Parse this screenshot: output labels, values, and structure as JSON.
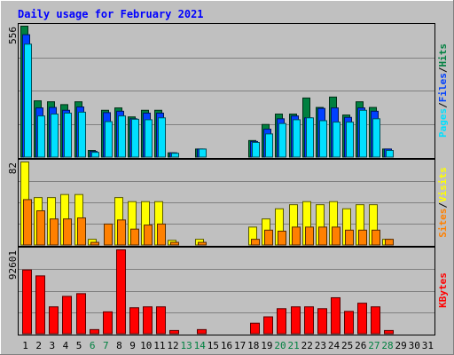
{
  "chart_data": {
    "title": "Daily usage for February 2021",
    "days": [
      "1",
      "2",
      "3",
      "4",
      "5",
      "6",
      "7",
      "8",
      "9",
      "10",
      "11",
      "12",
      "13",
      "14",
      "15",
      "16",
      "17",
      "18",
      "19",
      "20",
      "21",
      "22",
      "23",
      "24",
      "25",
      "26",
      "27",
      "28",
      "29",
      "30",
      "31"
    ],
    "weekend_days": [
      "6",
      "7",
      "13",
      "14",
      "20",
      "21",
      "27",
      "28"
    ],
    "colors": {
      "background": "#c0c0c0",
      "title": "#0000ff",
      "hits": "#008040",
      "files": "#0040ff",
      "pages": "#00e0ff",
      "visits": "#ffff00",
      "sites": "#ff8000",
      "kbytes": "#ff0000",
      "weekend_label": "#008040",
      "weekday_label": "#000000"
    },
    "panels": [
      {
        "type": "bar",
        "max_label": "556",
        "ymax": 556,
        "legend": [
          {
            "text": "Pages",
            "color": "#00e0ff"
          },
          {
            "text": "/",
            "color": "#000000"
          },
          {
            "text": "Files",
            "color": "#0040ff"
          },
          {
            "text": "/",
            "color": "#000000"
          },
          {
            "text": "Hits",
            "color": "#008040"
          }
        ],
        "series": [
          {
            "key": "hits",
            "values": [
              556,
              240,
              236,
              224,
              236,
              30,
              200,
              210,
              172,
              200,
              200,
              20,
              0,
              36,
              0,
              0,
              0,
              72,
              140,
              184,
              184,
              252,
              212,
              256,
              180,
              236,
              212,
              36,
              0,
              0,
              0
            ]
          },
          {
            "key": "files",
            "values": [
              520,
              210,
              212,
              200,
              214,
              26,
              190,
              196,
              164,
              188,
              188,
              20,
              0,
              36,
              0,
              0,
              0,
              68,
              120,
              164,
              176,
              168,
              208,
              210,
              170,
              210,
              196,
              36,
              0,
              0,
              0
            ]
          },
          {
            "key": "pages",
            "values": [
              480,
              176,
              184,
              188,
              192,
              22,
              152,
              176,
              162,
              160,
              168,
              18,
              0,
              36,
              0,
              0,
              0,
              64,
              100,
              144,
              160,
              168,
              156,
              150,
              150,
              200,
              164,
              30,
              0,
              0,
              0
            ]
          }
        ]
      },
      {
        "type": "bar",
        "max_label": "82",
        "ymax": 82,
        "legend": [
          {
            "text": "Sites",
            "color": "#ff8000"
          },
          {
            "text": "/",
            "color": "#000000"
          },
          {
            "text": "Visits",
            "color": "#ffff00"
          }
        ],
        "series": [
          {
            "key": "visits",
            "values": [
              82,
              47,
              47,
              50,
              50,
              6,
              0,
              47,
              43,
              43,
              43,
              5,
              0,
              6,
              0,
              0,
              0,
              18,
              26,
              36,
              40,
              43,
              40,
              43,
              36,
              40,
              40,
              6,
              0,
              0,
              0
            ]
          },
          {
            "key": "sites",
            "values": [
              45,
              34,
              26,
              26,
              27,
              3,
              21,
              25,
              16,
              20,
              21,
              3,
              0,
              3,
              0,
              0,
              0,
              6,
              15,
              14,
              18,
              18,
              18,
              18,
              15,
              15,
              15,
              6,
              0,
              0,
              0
            ]
          }
        ]
      },
      {
        "type": "bar",
        "max_label": "92601",
        "ymax": 92601,
        "legend": [
          {
            "text": "KBytes",
            "color": "#ff0000"
          }
        ],
        "series": [
          {
            "key": "kbytes",
            "values": [
              70500,
              64000,
              30000,
              41500,
              44500,
              5000,
              24500,
              92601,
              29000,
              30000,
              30000,
              4000,
              0,
              5000,
              0,
              0,
              0,
              12000,
              19000,
              28000,
              30000,
              30000,
              28000,
              40000,
              25000,
              34000,
              30000,
              4000,
              0,
              0,
              0
            ]
          }
        ]
      }
    ]
  }
}
